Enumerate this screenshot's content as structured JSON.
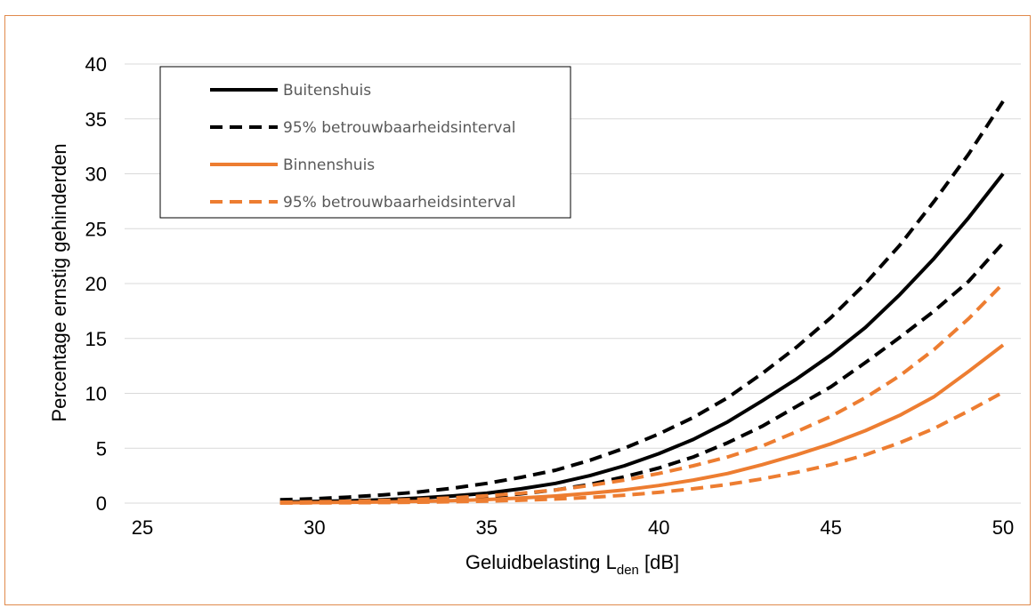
{
  "chart_data": {
    "type": "line",
    "xlabel": {
      "main": "Geluidbelasting L",
      "sub": "den",
      "suffix": " [dB]"
    },
    "ylabel": "Percentage ernstig gehinderden",
    "xlim": [
      25,
      50
    ],
    "ylim": [
      0,
      40
    ],
    "xticks": [
      "25",
      "30",
      "35",
      "40",
      "45",
      "50"
    ],
    "yticks": [
      "0",
      "5",
      "10",
      "15",
      "20",
      "25",
      "30",
      "35",
      "40"
    ],
    "grid": "horizontal",
    "legend_position": "top-left",
    "x": [
      29,
      30,
      31,
      32,
      33,
      34,
      35,
      36,
      37,
      38,
      39,
      40,
      41,
      42,
      43,
      44,
      45,
      46,
      47,
      48,
      49,
      50
    ],
    "series": [
      {
        "name": "Buitenshuis",
        "color": "#000000",
        "style": "solid",
        "values": [
          0.1,
          0.15,
          0.2,
          0.3,
          0.45,
          0.65,
          0.9,
          1.3,
          1.8,
          2.5,
          3.4,
          4.5,
          5.8,
          7.4,
          9.3,
          11.3,
          13.5,
          16.0,
          19.0,
          22.3,
          26.0,
          30.0
        ]
      },
      {
        "name": "95% betrouwbaarheidsinterval",
        "color": "#000000",
        "style": "dashed",
        "values": [
          0.3,
          0.4,
          0.55,
          0.75,
          1.0,
          1.35,
          1.8,
          2.35,
          3.0,
          3.9,
          5.0,
          6.3,
          7.8,
          9.6,
          11.8,
          14.2,
          16.9,
          20.0,
          23.5,
          27.5,
          31.8,
          36.6
        ]
      },
      {
        "name": "",
        "color": "#000000",
        "style": "dashed",
        "values": [
          0.05,
          0.08,
          0.12,
          0.18,
          0.27,
          0.4,
          0.58,
          0.85,
          1.2,
          1.7,
          2.4,
          3.2,
          4.2,
          5.5,
          7.0,
          8.8,
          10.6,
          12.8,
          15.1,
          17.5,
          20.2,
          23.7
        ]
      },
      {
        "name": "Binnenshuis",
        "color": "#ed7d31",
        "style": "solid",
        "values": [
          0.03,
          0.05,
          0.07,
          0.1,
          0.15,
          0.22,
          0.32,
          0.46,
          0.65,
          0.9,
          1.2,
          1.6,
          2.1,
          2.7,
          3.5,
          4.4,
          5.4,
          6.6,
          8.0,
          9.7,
          12.0,
          14.4
        ]
      },
      {
        "name": "95% betrouwbaarheidsinterval",
        "color": "#ed7d31",
        "style": "dashed",
        "values": [
          0.08,
          0.12,
          0.17,
          0.24,
          0.34,
          0.48,
          0.66,
          0.9,
          1.2,
          1.6,
          2.1,
          2.7,
          3.4,
          4.2,
          5.2,
          6.5,
          7.9,
          9.6,
          11.6,
          14.0,
          16.8,
          20.0
        ]
      },
      {
        "name": "",
        "color": "#ed7d31",
        "style": "dashed",
        "values": [
          0.01,
          0.02,
          0.03,
          0.05,
          0.08,
          0.12,
          0.18,
          0.26,
          0.37,
          0.52,
          0.72,
          0.98,
          1.3,
          1.7,
          2.2,
          2.8,
          3.5,
          4.4,
          5.5,
          6.8,
          8.4,
          10.1
        ]
      }
    ],
    "legend": [
      {
        "label": "Buitenshuis",
        "color": "#000000",
        "style": "solid"
      },
      {
        "label": "95% betrouwbaarheidsinterval",
        "color": "#000000",
        "style": "dashed"
      },
      {
        "label": "Binnenshuis",
        "color": "#ed7d31",
        "style": "solid"
      },
      {
        "label": "95% betrouwbaarheidsinterval",
        "color": "#ed7d31",
        "style": "dashed"
      }
    ]
  }
}
